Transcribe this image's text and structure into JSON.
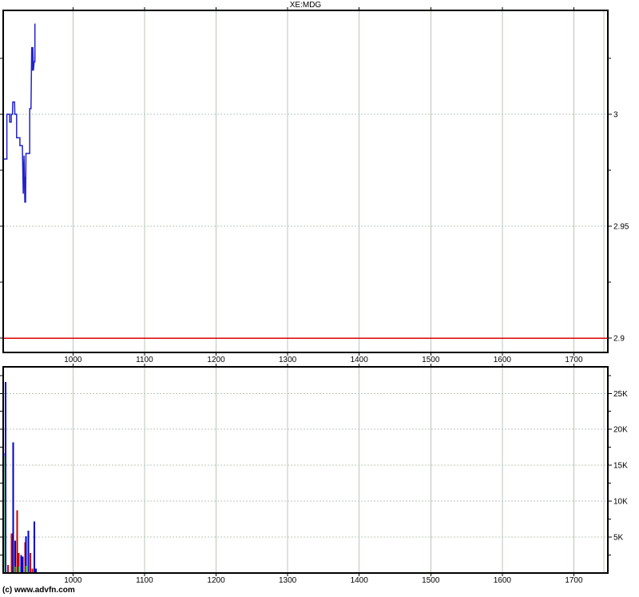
{
  "page": {
    "title": "XE:MDG",
    "copyright": "(c) www.advfn.com"
  },
  "colors": {
    "background": "#ffffff",
    "axis": "#000000",
    "gridline": "#b9c7b9",
    "price_line": "#2222cc",
    "reference_line": "#dd0000",
    "blue": "#0000cc",
    "red": "#cc0000",
    "green": "#00a000"
  },
  "chart_data": [
    {
      "type": "line",
      "title": "XE:MDG",
      "legend": null,
      "grid": true,
      "xlim": [
        902.5,
        1747.5
      ],
      "ylim": [
        2.8936,
        3.0464
      ],
      "x_axis": {
        "ticks": [
          1000,
          1100,
          1200,
          1300,
          1400,
          1500,
          1600,
          1700
        ],
        "labels": [
          "1000",
          "1100",
          "1200",
          "1300",
          "1400",
          "1500",
          "1600",
          "1700"
        ],
        "edge_line": 1742
      },
      "y_axis": {
        "side": "right",
        "major": [
          {
            "value": 3.0,
            "label": "3"
          },
          {
            "value": 2.95,
            "label": "2.95"
          },
          {
            "value": 2.9,
            "label": "2.9"
          }
        ],
        "minor": [
          3.025,
          2.975,
          2.925
        ]
      },
      "reference_line": {
        "value": 2.9,
        "color": "reference_line"
      },
      "series": {
        "name": "price",
        "color": "price_line",
        "points": [
          [
            903.0,
            2.98
          ],
          [
            907.6,
            2.98
          ],
          [
            907.6,
            3.0
          ],
          [
            911.5,
            3.0
          ],
          [
            911.5,
            2.9965
          ],
          [
            913.8,
            2.9965
          ],
          [
            913.8,
            3.0
          ],
          [
            915.4,
            3.0
          ],
          [
            915.9,
            3.0055
          ],
          [
            918.3,
            3.0055
          ],
          [
            918.8,
            3.0
          ],
          [
            921.3,
            3.0
          ],
          [
            921.3,
            2.9895
          ],
          [
            925.8,
            2.9895
          ],
          [
            925.8,
            2.986
          ],
          [
            929.3,
            2.986
          ],
          [
            930.5,
            2.9645
          ],
          [
            931.6,
            2.9815
          ],
          [
            932.7,
            2.9605
          ],
          [
            933.3,
            2.972
          ],
          [
            933.8,
            2.9605
          ],
          [
            934.3,
            2.9825
          ],
          [
            939.6,
            2.9825
          ],
          [
            939.6,
            3.0025
          ],
          [
            941.4,
            3.0025
          ],
          [
            942.3,
            3.03
          ],
          [
            943.1,
            3.0195
          ],
          [
            943.9,
            3.03
          ],
          [
            944.7,
            3.0195
          ],
          [
            945.8,
            3.0235
          ],
          [
            946.8,
            3.0235
          ],
          [
            946.8,
            3.0405
          ]
        ]
      }
    },
    {
      "type": "bar",
      "title": "volume",
      "legend": null,
      "grid": true,
      "xlim": [
        902.5,
        1747.5
      ],
      "ylim": [
        0,
        28700
      ],
      "x_axis": {
        "ticks": [
          1000,
          1100,
          1200,
          1300,
          1400,
          1500,
          1600,
          1700
        ],
        "labels": [
          "1000",
          "1100",
          "1200",
          "1300",
          "1400",
          "1500",
          "1600",
          "1700"
        ],
        "edge_line": 1742
      },
      "y_axis": {
        "side": "right",
        "major": [
          {
            "value": 25000,
            "label": "25K"
          },
          {
            "value": 20000,
            "label": "20K"
          },
          {
            "value": 15000,
            "label": "15K"
          },
          {
            "value": 10000,
            "label": "10K"
          },
          {
            "value": 5000,
            "label": "5K"
          }
        ],
        "minor": [
          27500,
          22500,
          17500,
          12500,
          7500,
          2500
        ]
      },
      "bars": [
        {
          "t": 903.0,
          "segments": [
            {
              "color": "green",
              "value": 16200
            },
            {
              "color": "blue",
              "value": 500
            }
          ]
        },
        {
          "t": 906.0,
          "segments": [
            {
              "color": "blue",
              "value": 26600
            }
          ]
        },
        {
          "t": 909.0,
          "segments": [
            {
              "color": "red",
              "value": 1100
            }
          ]
        },
        {
          "t": 914.0,
          "segments": [
            {
              "color": "red",
              "value": 5500
            }
          ]
        },
        {
          "t": 916.5,
          "segments": [
            {
              "color": "blue",
              "value": 18200
            }
          ]
        },
        {
          "t": 919.5,
          "segments": [
            {
              "color": "green",
              "value": 900
            },
            {
              "color": "blue",
              "value": 3600
            }
          ]
        },
        {
          "t": 922.0,
          "segments": [
            {
              "color": "red",
              "value": 8750
            }
          ]
        },
        {
          "t": 924.5,
          "segments": [
            {
              "color": "green",
              "value": 900
            },
            {
              "color": "red",
              "value": 1900
            }
          ]
        },
        {
          "t": 927.5,
          "segments": [
            {
              "color": "blue",
              "value": 2500
            }
          ]
        },
        {
          "t": 930.0,
          "segments": [
            {
              "color": "blue",
              "value": 2300
            }
          ]
        },
        {
          "t": 933.0,
          "segments": [
            {
              "color": "red",
              "value": 4300
            }
          ]
        },
        {
          "t": 934.5,
          "segments": [
            {
              "color": "green",
              "value": 1000
            },
            {
              "color": "blue",
              "value": 4100
            }
          ]
        },
        {
          "t": 937.5,
          "segments": [
            {
              "color": "blue",
              "value": 5900
            }
          ]
        },
        {
          "t": 940.5,
          "segments": [
            {
              "color": "red",
              "value": 2800
            }
          ]
        },
        {
          "t": 943.5,
          "segments": [
            {
              "color": "red",
              "value": 600
            }
          ]
        },
        {
          "t": 946.0,
          "segments": [
            {
              "color": "blue",
              "value": 7200
            }
          ]
        },
        {
          "t": 948.0,
          "segments": [
            {
              "color": "blue",
              "value": 600
            }
          ]
        }
      ]
    }
  ]
}
